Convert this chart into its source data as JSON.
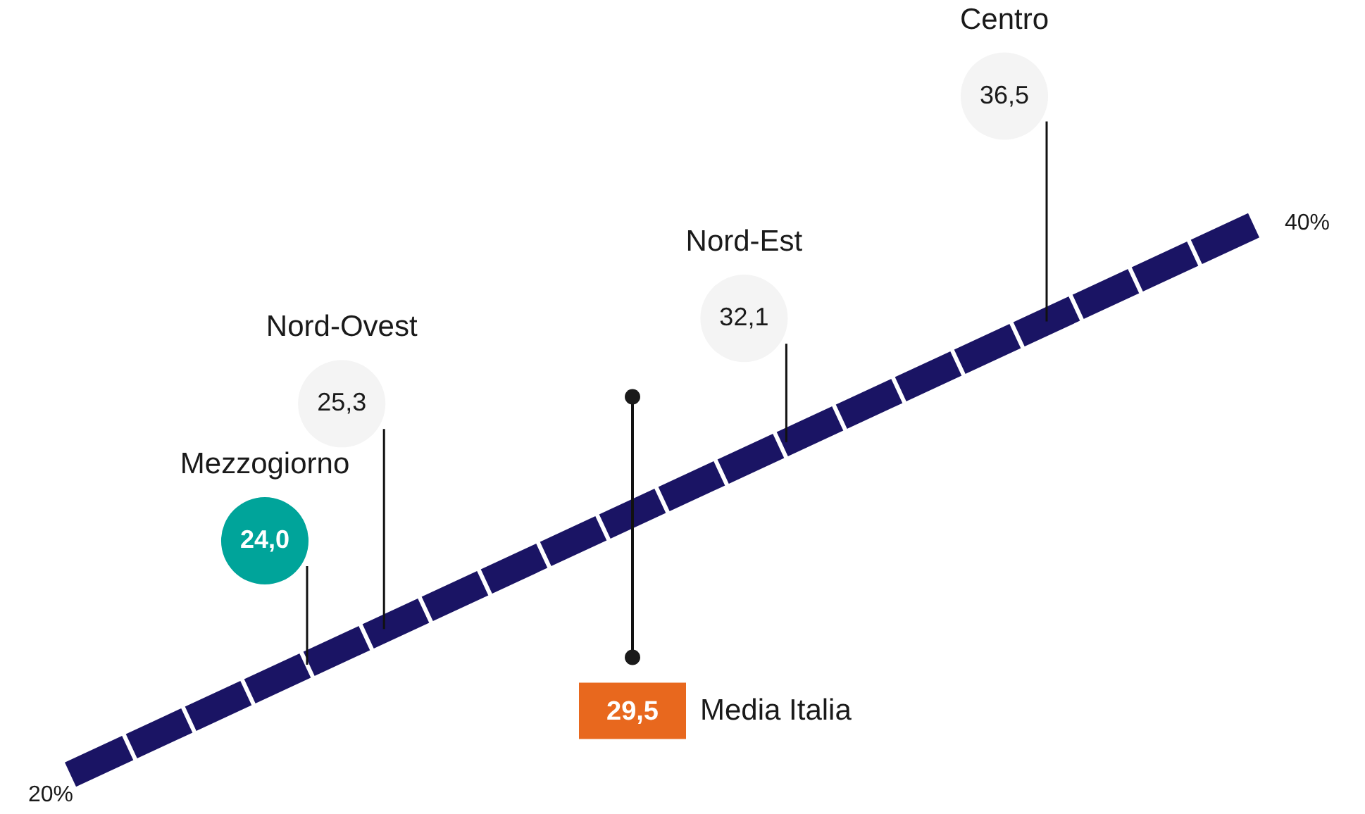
{
  "chart_data": {
    "type": "other",
    "categories": [
      "Mezzogiorno",
      "Nord-Ovest",
      "Nord-Est",
      "Centro",
      "Media Italia"
    ],
    "values": [
      24.0,
      25.3,
      32.1,
      36.5,
      29.5
    ],
    "value_labels": [
      "24,0",
      "25,3",
      "32,1",
      "36,5",
      "29,5"
    ],
    "colors": [
      "#00a49a",
      "#f4f4f4",
      "#f4f4f4",
      "#f4f4f4",
      "#e8681e"
    ],
    "annotations": [
      "20%",
      "40%"
    ]
  }
}
